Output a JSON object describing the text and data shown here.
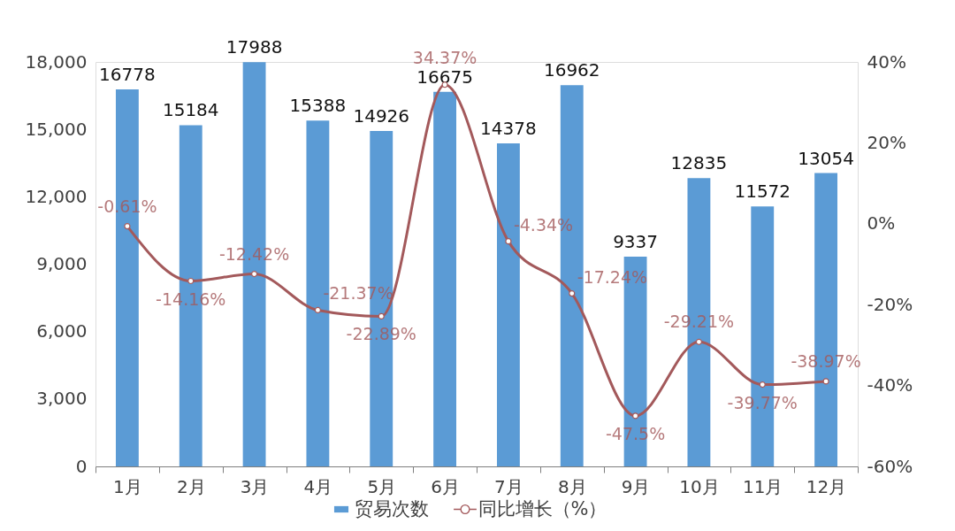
{
  "chart_data": {
    "type": "bar",
    "categories": [
      "1月",
      "2月",
      "3月",
      "4月",
      "5月",
      "6月",
      "7月",
      "8月",
      "9月",
      "10月",
      "11月",
      "12月"
    ],
    "series": [
      {
        "name": "贸易次数",
        "color": "#5b9bd5",
        "values": [
          16778,
          15184,
          17988,
          15388,
          14926,
          16675,
          14378,
          16962,
          9337,
          12835,
          11572,
          13054
        ]
      },
      {
        "name": "同比增长（%）",
        "type": "line",
        "axis": "y2",
        "color": "#a3595b",
        "marker": "circle",
        "values": [
          -0.61,
          -14.16,
          -12.42,
          -21.37,
          -22.89,
          34.37,
          -4.34,
          -17.24,
          -47.5,
          -29.21,
          -39.77,
          -38.97
        ],
        "value_labels": [
          "-0.61%",
          "-14.16%",
          "-12.42%",
          "-21.37%",
          "-22.89%",
          "34.37%",
          "-4.34%",
          "-17.24%",
          "-47.5%",
          "-29.21%",
          "-39.77%",
          "-38.97%"
        ]
      }
    ],
    "ylim": [
      0,
      18000
    ],
    "yticks": [
      {
        "value": 0,
        "label": "0"
      },
      {
        "value": 3000,
        "label": "3,000"
      },
      {
        "value": 6000,
        "label": "6,000"
      },
      {
        "value": 9000,
        "label": "9,000"
      },
      {
        "value": 12000,
        "label": "12,000"
      },
      {
        "value": 15000,
        "label": "15,000"
      },
      {
        "value": 18000,
        "label": "18,000"
      }
    ],
    "y2lim": [
      -60,
      40
    ],
    "y2ticks": [
      {
        "value": -60,
        "label": "-60%"
      },
      {
        "value": -40,
        "label": "-40%"
      },
      {
        "value": -20,
        "label": "-20%"
      },
      {
        "value": 0,
        "label": "0%"
      },
      {
        "value": 20,
        "label": "20%"
      },
      {
        "value": 40,
        "label": "40%"
      }
    ],
    "data_labels": true,
    "legend": "bottom"
  }
}
